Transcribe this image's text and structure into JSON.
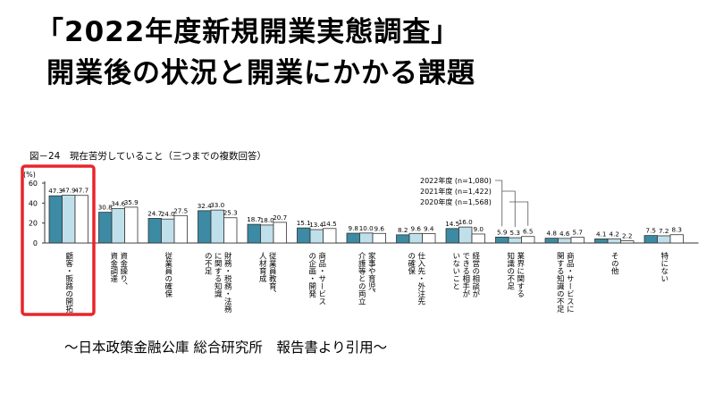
{
  "slide": {
    "title_line1": "「2022年度新規開業実態調査」",
    "title_line2": "開業後の状況と開業にかかる課題",
    "footer": "～日本政策金融公庫 総合研究所　報告書より引用～"
  },
  "highlight_color": "#e8262a",
  "chart_data": {
    "type": "bar",
    "figure_label": "図－24　現在苦労していること（三つまでの複数回答）",
    "y_unit": "(%)",
    "ylim": [
      0,
      60
    ],
    "yticks": [
      0,
      20,
      40,
      60
    ],
    "grid": false,
    "categories": [
      "顧客・販路の開拓",
      "資金繰り、資金調達",
      "従業員の確保",
      "財務・税務・法務に関する知識の不足",
      "従業員教育、人材育成",
      "商品・サービスの企画・開発",
      "家事や育児、介護等との両立",
      "仕入先・外注先の確保",
      "経営の相談ができる相手がいないこと",
      "業界に関する知識の不足",
      "商品・サービスに関する知識の不足",
      "その他",
      "特にない"
    ],
    "series": [
      {
        "name": "2022年度 (n=1,080)",
        "color": "#3c8aa3",
        "values": [
          47.3,
          30.8,
          24.7,
          32.4,
          18.7,
          15.1,
          9.8,
          8.2,
          14.5,
          5.9,
          4.8,
          4.1,
          7.5
        ]
      },
      {
        "name": "2021年度 (n=1,422)",
        "color": "#bfe0ea",
        "values": [
          47.9,
          34.6,
          24.0,
          33.0,
          18.0,
          13.4,
          10.0,
          9.6,
          16.0,
          5.3,
          4.6,
          4.2,
          7.2
        ]
      },
      {
        "name": "2020年度 (n=1,568)",
        "color": "#ffffff",
        "values": [
          47.7,
          35.9,
          27.5,
          25.3,
          20.7,
          14.5,
          9.6,
          9.4,
          9.0,
          6.5,
          5.7,
          2.2,
          8.3
        ]
      }
    ],
    "value_labels": [
      [
        "47.3",
        "47.9",
        "47.7"
      ],
      [
        "30.8",
        "34.6",
        "35.9"
      ],
      [
        "24.7",
        "24.0",
        "27.5"
      ],
      [
        "32.4",
        "33.0",
        "25.3"
      ],
      [
        "18.7",
        "18.0",
        "20.7"
      ],
      [
        "15.1",
        "13.4",
        "14.5"
      ],
      [
        "9.8",
        "10.0",
        "9.6"
      ],
      [
        "8.2",
        "9.6",
        "9.4"
      ],
      [
        "14.5",
        "16.0",
        "9.0"
      ],
      [
        "5.9",
        "5.3",
        "6.5"
      ],
      [
        "4.8",
        "4.6",
        "5.7"
      ],
      [
        "4.1",
        "4.2",
        "2.2"
      ],
      [
        "7.5",
        "7.2",
        "8.3"
      ]
    ],
    "category_label_columns": [
      [
        "顧客・販路の開拓"
      ],
      [
        "資金繰り、",
        "資金調達"
      ],
      [
        "従業員の確保"
      ],
      [
        "財務・税務・法務",
        "に関する知識",
        "の不足"
      ],
      [
        "従業員教育、",
        "人材育成"
      ],
      [
        "商品・サービス",
        "の企画・開発"
      ],
      [
        "家事や育児、",
        "介護等との両立"
      ],
      [
        "仕入先・外注先",
        "の確保"
      ],
      [
        "経営の相談が",
        "できる相手が",
        "いないこと"
      ],
      [
        "業界に関する",
        "知識の不足"
      ],
      [
        "商品・サービスに",
        "関する知識の不足"
      ],
      [
        "その他"
      ],
      [
        "特にない"
      ]
    ],
    "legend_placement": "top-right, with leader lines to the 業界に関する知識の不足 bars",
    "highlighted_category": "顧客・販路の開拓"
  }
}
